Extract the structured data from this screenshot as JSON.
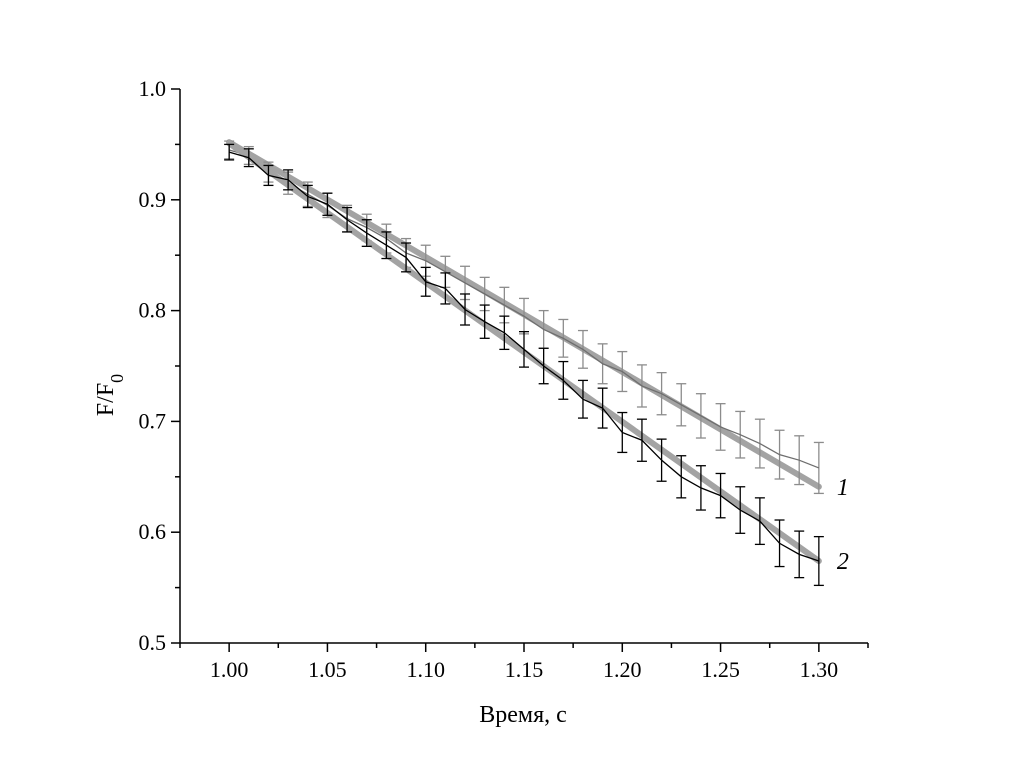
{
  "chart_data": {
    "type": "line",
    "xlabel": "Время, с",
    "ylabel": {
      "base": "F/F",
      "sub": "0"
    },
    "xlim": [
      0.975,
      1.325
    ],
    "ylim": [
      0.5,
      1.0
    ],
    "x_ticks": [
      "1.00",
      "1.05",
      "1.10",
      "1.15",
      "1.20",
      "1.25",
      "1.30"
    ],
    "y_ticks": [
      "0.5",
      "0.6",
      "0.7",
      "0.8",
      "0.9",
      "1.0"
    ],
    "x": [
      1.0,
      1.01,
      1.02,
      1.03,
      1.04,
      1.05,
      1.06,
      1.07,
      1.08,
      1.09,
      1.1,
      1.11,
      1.12,
      1.13,
      1.14,
      1.15,
      1.16,
      1.17,
      1.18,
      1.19,
      1.2,
      1.21,
      1.22,
      1.23,
      1.24,
      1.25,
      1.26,
      1.27,
      1.28,
      1.29,
      1.3
    ],
    "series": [
      {
        "name": "1",
        "color": "#6e6e6e",
        "errcolor": "#8c8c8c",
        "values": [
          0.945,
          0.94,
          0.925,
          0.915,
          0.905,
          0.895,
          0.883,
          0.875,
          0.865,
          0.852,
          0.845,
          0.835,
          0.825,
          0.815,
          0.805,
          0.795,
          0.783,
          0.775,
          0.765,
          0.752,
          0.745,
          0.732,
          0.725,
          0.715,
          0.705,
          0.695,
          0.688,
          0.68,
          0.67,
          0.665,
          0.658
        ],
        "errors": [
          0.008,
          0.008,
          0.009,
          0.01,
          0.011,
          0.011,
          0.012,
          0.012,
          0.013,
          0.013,
          0.014,
          0.014,
          0.015,
          0.015,
          0.016,
          0.016,
          0.017,
          0.017,
          0.017,
          0.018,
          0.018,
          0.019,
          0.019,
          0.019,
          0.02,
          0.021,
          0.021,
          0.022,
          0.022,
          0.022,
          0.023
        ],
        "fit": [
          0.952,
          0.641
        ]
      },
      {
        "name": "2",
        "color": "#000000",
        "errcolor": "#000000",
        "values": [
          0.943,
          0.938,
          0.922,
          0.918,
          0.903,
          0.896,
          0.882,
          0.87,
          0.859,
          0.848,
          0.826,
          0.82,
          0.801,
          0.79,
          0.78,
          0.765,
          0.75,
          0.737,
          0.72,
          0.712,
          0.69,
          0.683,
          0.665,
          0.65,
          0.64,
          0.633,
          0.62,
          0.61,
          0.59,
          0.58,
          0.574
        ],
        "errors": [
          0.007,
          0.008,
          0.009,
          0.009,
          0.01,
          0.01,
          0.011,
          0.012,
          0.012,
          0.013,
          0.013,
          0.014,
          0.014,
          0.015,
          0.015,
          0.016,
          0.016,
          0.017,
          0.017,
          0.018,
          0.018,
          0.019,
          0.019,
          0.019,
          0.02,
          0.02,
          0.021,
          0.021,
          0.021,
          0.021,
          0.022
        ],
        "fit": [
          0.951,
          0.574
        ]
      }
    ],
    "fit_color": "#a3a3a3",
    "grid": false,
    "legend": "inline-labels-right"
  }
}
